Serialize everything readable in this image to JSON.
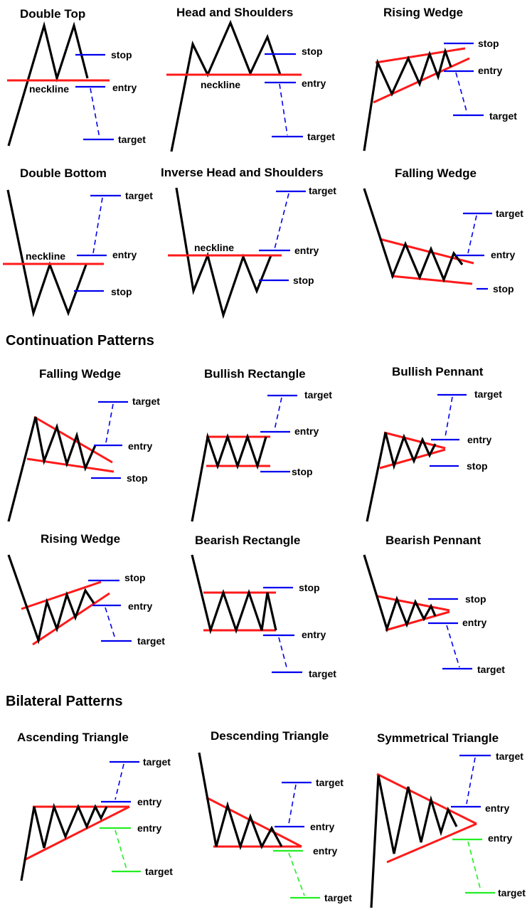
{
  "colors": {
    "price": "#000000",
    "trendline": "#ff1a1a",
    "level": "#0000ee",
    "alt_level": "#22ee22"
  },
  "sections": {
    "continuation": "Continuation Patterns",
    "bilateral": "Bilateral Patterns"
  },
  "labels": {
    "stop": "stop",
    "entry": "entry",
    "target": "target",
    "neckline": "neckline"
  },
  "patterns": [
    {
      "id": "double-top",
      "title": "Double Top"
    },
    {
      "id": "head-and-shoulders",
      "title": "Head and Shoulders"
    },
    {
      "id": "rising-wedge-reversal",
      "title": "Rising Wedge"
    },
    {
      "id": "double-bottom",
      "title": "Double Bottom"
    },
    {
      "id": "inverse-head-and-shoulders",
      "title": "Inverse Head and Shoulders"
    },
    {
      "id": "falling-wedge-reversal",
      "title": "Falling Wedge"
    },
    {
      "id": "falling-wedge-continuation",
      "title": "Falling Wedge"
    },
    {
      "id": "bullish-rectangle",
      "title": "Bullish Rectangle"
    },
    {
      "id": "bullish-pennant",
      "title": "Bullish Pennant"
    },
    {
      "id": "rising-wedge-continuation",
      "title": "Rising Wedge"
    },
    {
      "id": "bearish-rectangle",
      "title": "Bearish Rectangle"
    },
    {
      "id": "bearish-pennant",
      "title": "Bearish Pennant"
    },
    {
      "id": "ascending-triangle",
      "title": "Ascending Triangle"
    },
    {
      "id": "descending-triangle",
      "title": "Descending Triangle"
    },
    {
      "id": "symmetrical-triangle",
      "title": "Symmetrical Triangle"
    }
  ]
}
